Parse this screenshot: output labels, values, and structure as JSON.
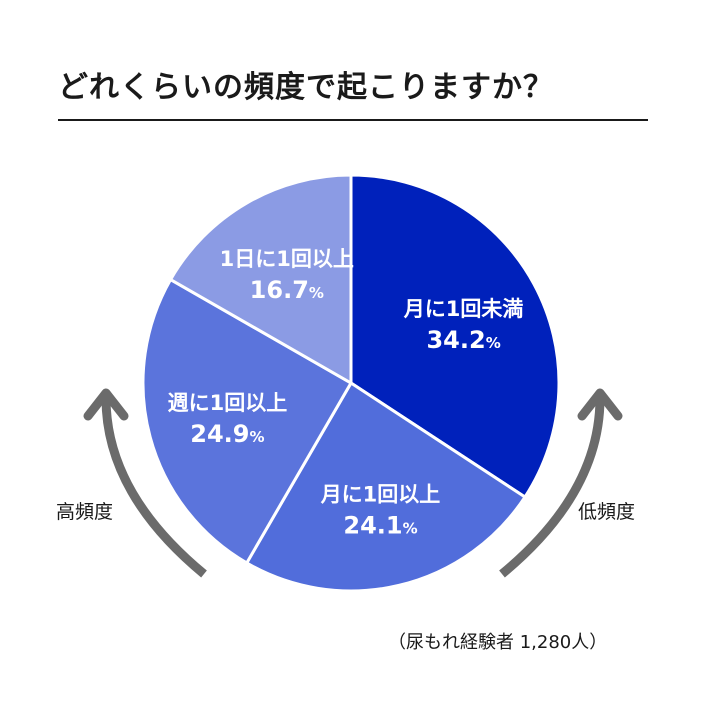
{
  "title": "どれくらいの頻度で起こりますか？",
  "chart_data": {
    "type": "pie",
    "title": "どれくらいの頻度で起こりますか？",
    "slices": [
      {
        "label": "月に1回未満",
        "value": 34.2,
        "display": "34.2",
        "color": "#0021bb"
      },
      {
        "label": "月に1回以上",
        "value": 24.1,
        "display": "24.1",
        "color": "#516ddb"
      },
      {
        "label": "週に1回以上",
        "value": 24.9,
        "display": "24.9",
        "color": "#5b74dc"
      },
      {
        "label": "1日に1回以上",
        "value": 16.7,
        "display": "16.7",
        "color": "#8b9be4"
      }
    ],
    "unit": "%",
    "start": "12 o'clock",
    "direction": "clockwise"
  },
  "left_label": "高頻度",
  "right_label": "低頻度",
  "arrow_color": "#6b6b6b",
  "note": "（尿もれ経験者 1,280人）"
}
